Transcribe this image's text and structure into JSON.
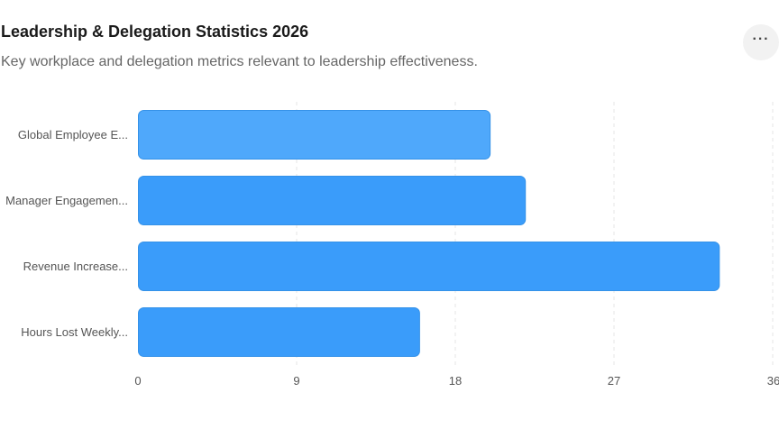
{
  "header": {
    "title": "Leadership & Delegation Statistics 2026",
    "subtitle": "Key workplace and delegation metrics relevant to leadership effectiveness.",
    "menu_icon": "more-horizontal-icon",
    "menu_label": "···"
  },
  "colors": {
    "bar_light": "#4fa8fb",
    "bar_dark": "#3a9cfa",
    "bar_stroke": "#3592e8",
    "grid": "#e6e6e6",
    "menu_bg": "#f2f2f2"
  },
  "chart_data": {
    "type": "bar",
    "orientation": "horizontal",
    "title": "Leadership & Delegation Statistics 2026",
    "subtitle": "Key workplace and delegation metrics relevant to leadership effectiveness.",
    "categories": [
      "Global Employee E...",
      "Manager Engagemen...",
      "Revenue Increase...",
      "Hours Lost Weekly..."
    ],
    "values": [
      20,
      22,
      33,
      16
    ],
    "xlim": [
      0,
      36
    ],
    "xticks": [
      0,
      9,
      18,
      27,
      36
    ],
    "grid": "vertical-dashed",
    "legend": "none"
  }
}
